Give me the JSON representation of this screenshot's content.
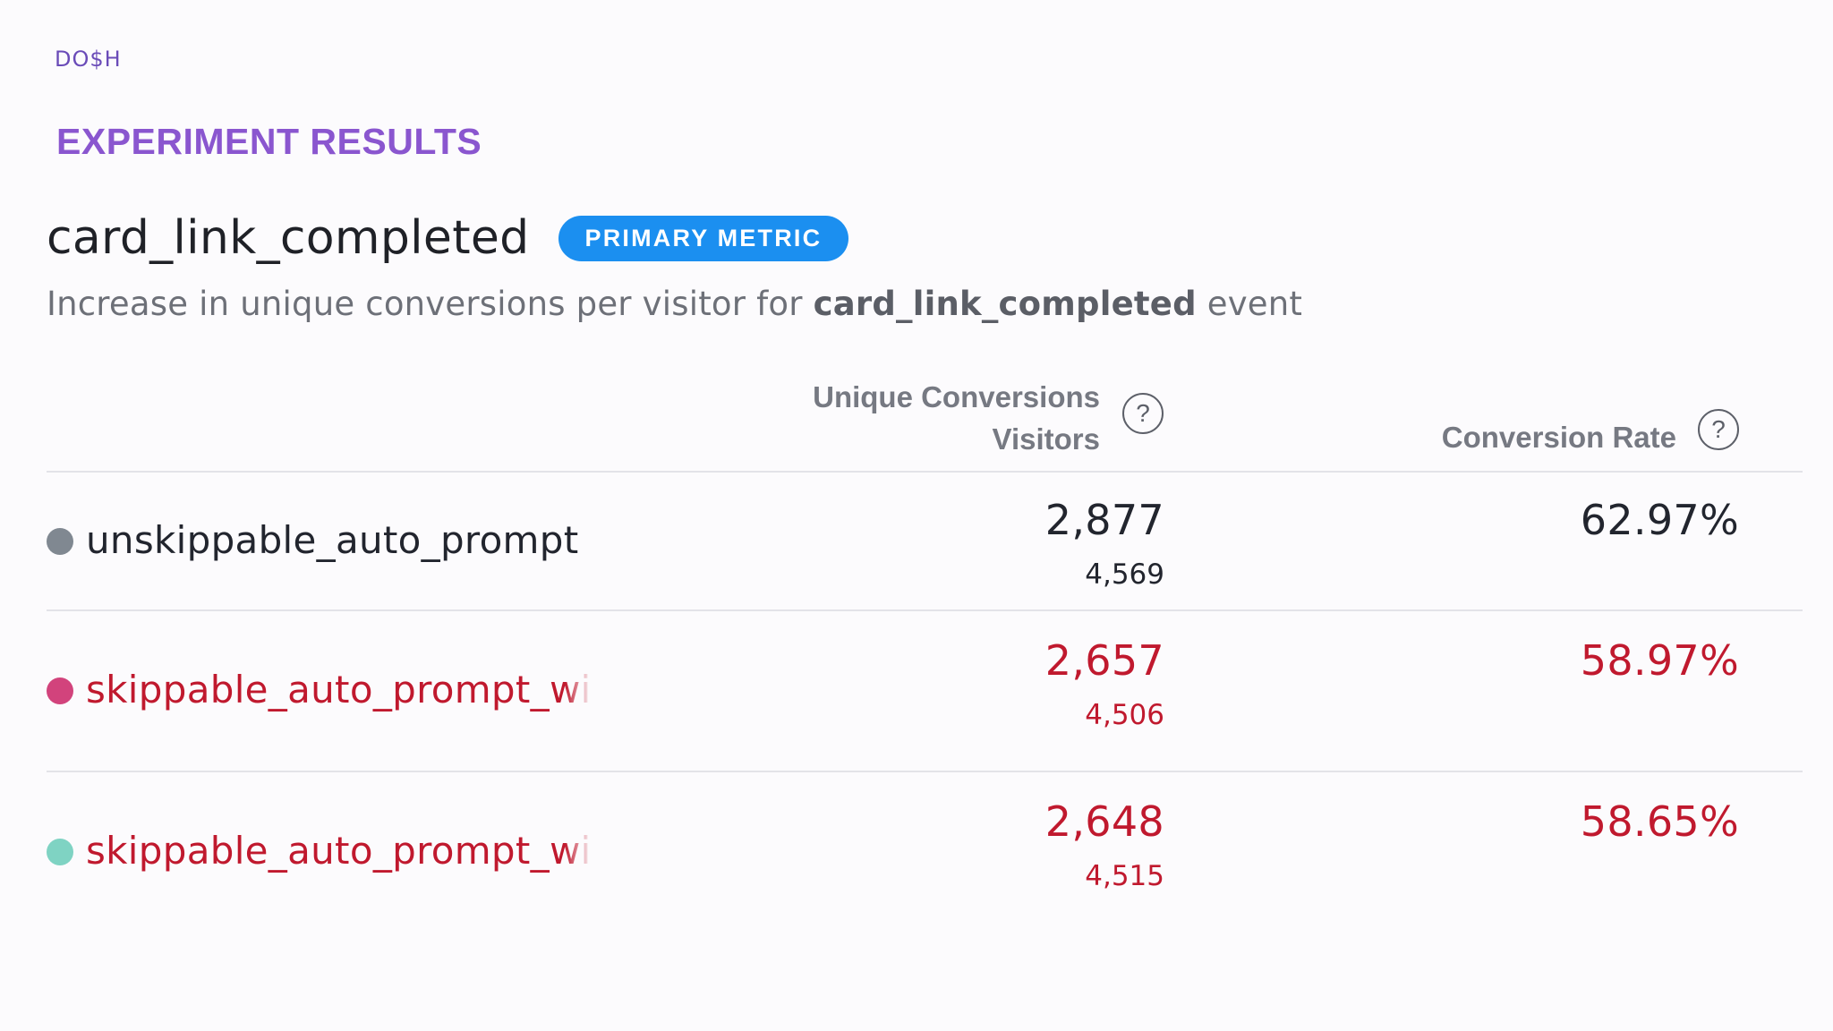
{
  "brand": {
    "logo_text": "DO$H"
  },
  "section_title": "EXPERIMENT RESULTS",
  "metric": {
    "name": "card_link_completed",
    "badge": "PRIMARY METRIC",
    "description_prefix": "Increase in unique conversions per visitor for ",
    "description_event": "card_link_completed",
    "description_suffix": " event"
  },
  "columns": {
    "conversions_line1": "Unique Conversions",
    "conversions_line2": "Visitors",
    "rate": "Conversion Rate",
    "help_glyph": "?"
  },
  "rows": [
    {
      "variant": "unskippable_auto_prompt",
      "dot_color": "#808891",
      "conversions": "2,877",
      "visitors": "4,569",
      "rate": "62.97%",
      "tone": "neutral"
    },
    {
      "variant": "skippable_auto_prompt_with_",
      "dot_color": "#d2437c",
      "conversions": "2,657",
      "visitors": "4,506",
      "rate": "58.97%",
      "tone": "negative"
    },
    {
      "variant": "skippable_auto_prompt_with_",
      "dot_color": "#7fd3c3",
      "conversions": "2,648",
      "visitors": "4,515",
      "rate": "58.65%",
      "tone": "negative"
    }
  ],
  "colors": {
    "accent_purple": "#8a56cf",
    "badge_blue": "#1b8ff0",
    "negative_red": "#c0192e"
  }
}
